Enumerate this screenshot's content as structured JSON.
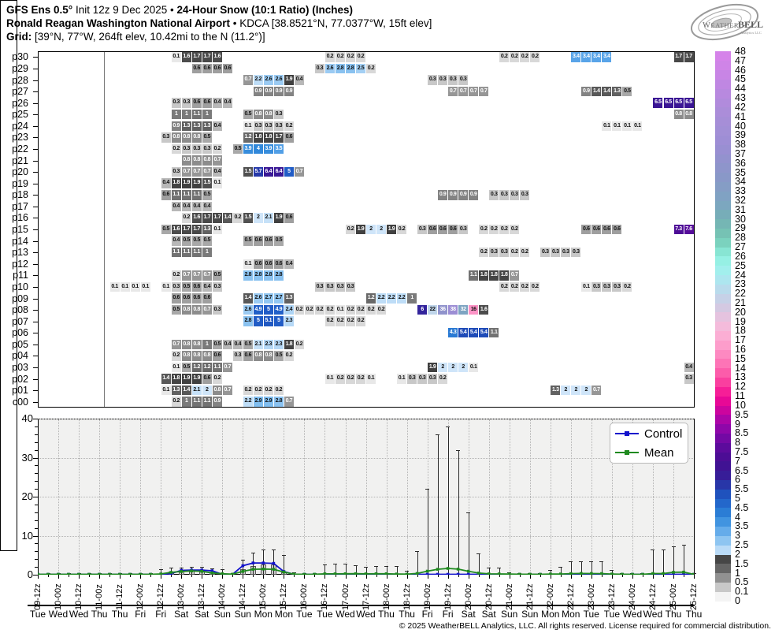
{
  "header": {
    "line1_bold1": "GFS Ens 0.5°",
    "line1_mid": " Init 12z 9 Dec 2025 • ",
    "line1_bold2": "24-Hour Snow (10:1 Ratio) (Inches)",
    "line2_bold": "Ronald Reagan Washington National Airport",
    "line2_rest": " • KDCA [38.8521°N, 77.0377°W, 15ft elev]",
    "line3_bold": "Grid:",
    "line3_rest": " [39°N, 77°W, 264ft elev, 10.42mi to the N (11.2°)]"
  },
  "logo": {
    "text_weather": "Weather",
    "text_bell": "BELL",
    "subtext": "Analytics LLC"
  },
  "legend": {
    "control": "Control",
    "mean": "Mean"
  },
  "footer": "© 2025 WeatherBELL Analytics, LLC. All rights reserved. License required for commercial distribution.",
  "colorbar": {
    "labels_top_to_bottom": [
      "48",
      "47",
      "46",
      "45",
      "44",
      "43",
      "42",
      "41",
      "40",
      "39",
      "38",
      "37",
      "36",
      "35",
      "34",
      "33",
      "32",
      "31",
      "30",
      "29",
      "28",
      "27",
      "26",
      "25",
      "24",
      "23",
      "22",
      "21",
      "20",
      "19",
      "18",
      "17",
      "16",
      "15",
      "14",
      "13",
      "12",
      "11",
      "10",
      "9.5",
      "9",
      "8.5",
      "8",
      "7.5",
      "7",
      "6.5",
      "6",
      "5.5",
      "5",
      "4.5",
      "4",
      "3.5",
      "3",
      "2.5",
      "2",
      "1.5",
      "1",
      "0.5",
      "0.1",
      "0"
    ]
  },
  "axis": {
    "y_ticks": [
      0,
      10,
      20,
      30,
      40
    ],
    "x_labels": [
      "09-12z",
      "10-00z",
      "10-12z",
      "11-00z",
      "11-12z",
      "12-00z",
      "12-12z",
      "13-00z",
      "13-12z",
      "14-00z",
      "14-12z",
      "15-00z",
      "15-12z",
      "16-00z",
      "16-12z",
      "17-00z",
      "17-12z",
      "18-00z",
      "18-12z",
      "19-00z",
      "19-12z",
      "20-00z",
      "20-12z",
      "21-00z",
      "21-12z",
      "22-00z",
      "22-12z",
      "23-00z",
      "23-12z",
      "24-00z",
      "24-12z",
      "25-00z",
      "25-12z"
    ],
    "weekdays": [
      "Tue",
      "Wed",
      "Wed",
      "Thu",
      "Thu",
      "Fri",
      "Fri",
      "Sat",
      "Sat",
      "Sun",
      "Sun",
      "Mon",
      "Mon",
      "Tue",
      "Tue",
      "Wed",
      "Wed",
      "Thu",
      "Thu",
      "Fri",
      "Fri",
      "Sat",
      "Sat",
      "Sun",
      "Sun",
      "Mon",
      "Mon",
      "Tue",
      "Tue",
      "Wed",
      "Wed",
      "Thu",
      "Thu"
    ]
  },
  "chart_data": [
    {
      "type": "heatmap",
      "title": "24-Hour Snow (10:1 Ratio) (Inches) by GFS ensemble member",
      "x_axis": {
        "start": "09-12z",
        "end": "25-12z",
        "step_hours": 6,
        "n_cols": 65
      },
      "value_units": "inches",
      "members": [
        {
          "row": "p30",
          "groups": [
            [
              13,
              [
                0.1,
                1.6,
                1.7,
                1.7,
                1.6
              ]
            ],
            [
              28,
              [
                0.2,
                0.2,
                0.2,
                0.2
              ]
            ],
            [
              45,
              [
                0.2,
                0.2,
                0.2,
                0.2
              ]
            ],
            [
              52,
              [
                3.4,
                3.4,
                3.4,
                3.4
              ]
            ],
            [
              62,
              [
                1.7,
                1.7
              ]
            ]
          ]
        },
        {
          "row": "p29",
          "groups": [
            [
              15,
              [
                0.6,
                0.6,
                0.6,
                0.6
              ]
            ],
            [
              27,
              [
                0.3,
                2.6,
                2.8,
                2.8,
                2.5,
                0.2
              ]
            ]
          ]
        },
        {
          "row": "p28",
          "groups": [
            [
              20,
              [
                0.7,
                2.2,
                2.6,
                2.6,
                1.9,
                0.4
              ]
            ],
            [
              38,
              [
                0.3,
                0.3,
                0.3,
                0.3
              ]
            ]
          ]
        },
        {
          "row": "p27",
          "groups": [
            [
              21,
              [
                0.9,
                0.9,
                0.9,
                0.9
              ]
            ],
            [
              40,
              [
                0.7,
                0.7,
                0.7,
                0.7
              ]
            ],
            [
              53,
              [
                0.9,
                1.4,
                1.4,
                1.3,
                0.5
              ]
            ]
          ]
        },
        {
          "row": "p26",
          "groups": [
            [
              13,
              [
                0.3,
                0.3,
                0.6,
                0.6,
                0.4,
                0.4
              ]
            ],
            [
              60,
              [
                6.5,
                6.5,
                6.5,
                6.5
              ]
            ]
          ]
        },
        {
          "row": "p25",
          "groups": [
            [
              13,
              [
                1,
                1,
                1.1,
                1
              ]
            ],
            [
              20,
              [
                0.5,
                0.8,
                0.8,
                0.3
              ]
            ],
            [
              62,
              [
                0.8,
                0.8
              ]
            ]
          ]
        },
        {
          "row": "p24",
          "groups": [
            [
              13,
              [
                0.9,
                1.3,
                1.3,
                1.3,
                0.4
              ]
            ],
            [
              20,
              [
                0.1,
                0.3,
                0.3,
                0.3,
                0.2
              ]
            ],
            [
              55,
              [
                0.1,
                0.1,
                0.1,
                0.1
              ]
            ]
          ]
        },
        {
          "row": "p23",
          "groups": [
            [
              12,
              [
                0.3,
                0.8,
                0.8,
                0.8,
                0.5
              ]
            ],
            [
              20,
              [
                1.2,
                1.8,
                1.8,
                1.7,
                0.6
              ]
            ]
          ]
        },
        {
          "row": "p22",
          "groups": [
            [
              13,
              [
                0.2,
                0.3,
                0.3,
                0.3,
                0.2
              ]
            ],
            [
              19,
              [
                0.5,
                3.9,
                4,
                3.9,
                3.5
              ]
            ]
          ]
        },
        {
          "row": "p21",
          "groups": [
            [
              14,
              [
                0.8,
                0.8,
                0.8,
                0.7
              ]
            ]
          ]
        },
        {
          "row": "p20",
          "groups": [
            [
              13,
              [
                0.3,
                0.7,
                0.7,
                0.7,
                0.4
              ]
            ],
            [
              20,
              [
                1.5,
                5.7,
                6.4,
                6.4,
                5,
                0.7
              ]
            ]
          ]
        },
        {
          "row": "p19",
          "groups": [
            [
              12,
              [
                0.4,
                1.8,
                1.9,
                1.9,
                1.5,
                0.1
              ]
            ]
          ]
        },
        {
          "row": "p18",
          "groups": [
            [
              12,
              [
                0.6,
                1.1,
                1.1,
                1.1,
                0.5
              ]
            ],
            [
              39,
              [
                0.9,
                0.9,
                0.9,
                0.9
              ]
            ],
            [
              44,
              [
                0.3,
                0.3,
                0.3,
                0.3
              ]
            ]
          ]
        },
        {
          "row": "p17",
          "groups": [
            [
              13,
              [
                0.4,
                0.4,
                0.4,
                0.4
              ]
            ]
          ]
        },
        {
          "row": "p16",
          "groups": [
            [
              14,
              [
                0.2,
                1.6,
                1.7,
                1.7,
                1.4,
                0.2,
                1.5,
                2,
                2.1,
                1.9,
                0.6
              ]
            ]
          ]
        },
        {
          "row": "p15",
          "groups": [
            [
              12,
              [
                0.5,
                1.6,
                1.7,
                1.7,
                1.3,
                0.1
              ]
            ],
            [
              30,
              [
                0.2,
                1.9,
                2,
                2,
                1.9,
                0.2
              ]
            ],
            [
              37,
              [
                0.3,
                0.6,
                0.6,
                0.6,
                0.3
              ]
            ],
            [
              43,
              [
                0.2,
                0.2,
                0.2,
                0.2
              ]
            ],
            [
              53,
              [
                0.6,
                0.6,
                0.6,
                0.6
              ]
            ],
            [
              62,
              [
                7.3,
                7.6
              ]
            ]
          ]
        },
        {
          "row": "p14",
          "groups": [
            [
              13,
              [
                0.4,
                0.5,
                0.5,
                0.5
              ]
            ],
            [
              20,
              [
                0.5,
                0.6,
                0.6,
                0.5
              ]
            ]
          ]
        },
        {
          "row": "p13",
          "groups": [
            [
              13,
              [
                1.1,
                1.1,
                1.1,
                1
              ]
            ],
            [
              43,
              [
                0.2,
                0.3,
                0.3,
                0.2,
                0.2
              ]
            ],
            [
              49,
              [
                0.3,
                0.3,
                0.3,
                0.3
              ]
            ]
          ]
        },
        {
          "row": "p12",
          "groups": [
            [
              20,
              [
                0.1,
                0.6,
                0.6,
                0.6,
                0.4
              ]
            ]
          ]
        },
        {
          "row": "p11",
          "groups": [
            [
              13,
              [
                0.2,
                0.7,
                0.7,
                0.7,
                0.5
              ]
            ],
            [
              20,
              [
                2.8,
                2.8,
                2.8,
                2.8
              ]
            ],
            [
              42,
              [
                1.1,
                1.8,
                1.8,
                1.8,
                0.7
              ]
            ]
          ]
        },
        {
          "row": "p10",
          "groups": [
            [
              7,
              [
                0.1,
                0.1,
                0.1,
                0.1
              ]
            ],
            [
              12,
              [
                0.1,
                0.3,
                0.5,
                0.6,
                0.4,
                0.3
              ]
            ],
            [
              27,
              [
                0.3,
                0.3,
                0.3,
                0.3
              ]
            ],
            [
              45,
              [
                0.2,
                0.2,
                0.2,
                0.2
              ]
            ],
            [
              53,
              [
                0.1,
                0.3,
                0.3,
                0.3,
                0.2
              ]
            ]
          ]
        },
        {
          "row": "p09",
          "groups": [
            [
              13,
              [
                0.6,
                0.6,
                0.6,
                0.6
              ]
            ],
            [
              20,
              [
                1.4,
                2.6,
                2.7,
                2.7,
                1.3
              ]
            ],
            [
              32,
              [
                1.2,
                2.2,
                2.2,
                2.2,
                1
              ]
            ]
          ]
        },
        {
          "row": "p08",
          "groups": [
            [
              13,
              [
                0.5,
                0.8,
                0.8,
                0.7,
                0.3
              ]
            ],
            [
              20,
              [
                2.6,
                4.9,
                5,
                4.9,
                2.4,
                0.2,
                0.2,
                0.2,
                0.2,
                0.1,
                0.2,
                0.2,
                0.2,
                0.2
              ]
            ],
            [
              37,
              [
                6,
                22,
                36,
                38,
                32,
                16,
                1.6
              ]
            ]
          ]
        },
        {
          "row": "p07",
          "groups": [
            [
              20,
              [
                2.8,
                5,
                5.1,
                5,
                2.3
              ]
            ],
            [
              28,
              [
                0.2,
                0.2,
                0.2,
                0.2
              ]
            ]
          ]
        },
        {
          "row": "p06",
          "groups": [
            [
              40,
              [
                4.3,
                5.4,
                5.4,
                5.4,
                1.1
              ]
            ]
          ]
        },
        {
          "row": "p05",
          "groups": [
            [
              13,
              [
                0.7,
                0.8,
                0.8,
                1,
                0.5,
                0.4,
                0.4,
                0.5,
                2.1,
                2.3,
                2.3,
                1.8,
                0.2
              ]
            ]
          ]
        },
        {
          "row": "p04",
          "groups": [
            [
              13,
              [
                0.2,
                0.8,
                0.8,
                0.8,
                0.6
              ]
            ],
            [
              19,
              [
                0.3,
                0.6,
                0.8,
                0.8,
                0.5,
                0.2
              ]
            ]
          ]
        },
        {
          "row": "p03",
          "groups": [
            [
              13,
              [
                0.1,
                0.5,
                1.2,
                1.2,
                1.1,
                0.7
              ]
            ],
            [
              38,
              [
                1.9,
                2,
                2,
                2,
                0.1
              ]
            ],
            [
              63,
              [
                0.4
              ]
            ]
          ]
        },
        {
          "row": "p02",
          "groups": [
            [
              12,
              [
                1.4,
                1.8,
                1.9,
                1.9,
                0.6,
                0.2
              ]
            ],
            [
              28,
              [
                0.1,
                0.2,
                0.2,
                0.2,
                0.1
              ]
            ],
            [
              35,
              [
                0.1,
                0.3,
                0.3,
                0.3,
                0.2
              ]
            ],
            [
              63,
              [
                0.3
              ]
            ]
          ]
        },
        {
          "row": "p01",
          "groups": [
            [
              12,
              [
                0.1,
                1.3,
                1.4,
                2.1,
                2,
                0.8,
                0.7
              ]
            ],
            [
              20,
              [
                0.2,
                0.2,
                0.2,
                0.2
              ]
            ],
            [
              50,
              [
                1.3,
                2,
                2,
                2,
                0.7
              ]
            ]
          ]
        },
        {
          "row": "c00",
          "groups": [
            [
              13,
              [
                0.2,
                1,
                1.1,
                1.1,
                0.9
              ]
            ],
            [
              20,
              [
                2.2,
                2.9,
                2.9,
                2.8,
                0.7
              ]
            ]
          ]
        }
      ]
    },
    {
      "type": "line",
      "ylim": [
        0,
        40
      ],
      "grid": true,
      "legend_position": "upper right",
      "series": [
        {
          "name": "Control",
          "color": "#1212cc",
          "source": "member c00 row of heatmap"
        },
        {
          "name": "Mean",
          "color": "#1f8a1f",
          "source": "average of all 31 ensemble members"
        }
      ],
      "whiskers": "vertical bars span 0 to ensemble maximum at each 6-hour step; gray boxes span 0 to ensemble 75th percentile"
    }
  ]
}
